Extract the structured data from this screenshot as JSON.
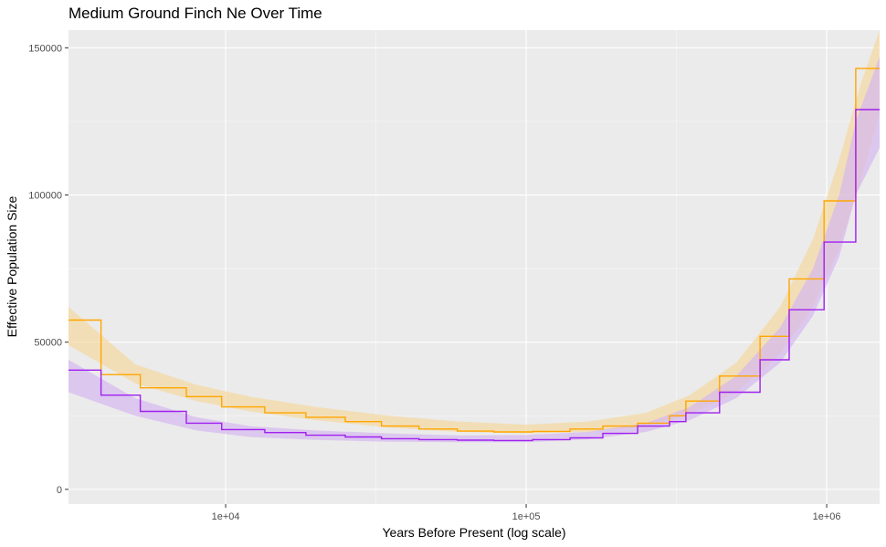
{
  "chart_data": {
    "type": "line",
    "title": "Medium Ground Finch Ne Over Time",
    "xlabel": "Years Before Present (log scale)",
    "ylabel": "Effective Population Size",
    "x_scale": "log10",
    "xlim": [
      3000,
      1500000
    ],
    "ylim": [
      -5000,
      156000
    ],
    "x_ticks": [
      {
        "value": 10000,
        "label": "1e+04"
      },
      {
        "value": 100000,
        "label": "1e+05"
      },
      {
        "value": 1000000,
        "label": "1e+06"
      }
    ],
    "y_ticks": [
      {
        "value": 0,
        "label": "0"
      },
      {
        "value": 50000,
        "label": "50000"
      },
      {
        "value": 100000,
        "label": "100000"
      },
      {
        "value": 150000,
        "label": "150000"
      }
    ],
    "grid": true,
    "legend": "none",
    "series": [
      {
        "color": "#ffa500",
        "ribbon_color": "#f5d9a0",
        "render": "step",
        "time": [
          3000,
          3850,
          5200,
          7400,
          9700,
          13500,
          18500,
          25000,
          33000,
          44000,
          59000,
          78000,
          105000,
          140000,
          180000,
          235000,
          300000,
          340000,
          440000,
          600000,
          750000,
          980000,
          1250000,
          1500000
        ],
        "ne": [
          57500,
          39000,
          34500,
          31500,
          28000,
          26000,
          24500,
          23000,
          21500,
          20500,
          19800,
          19500,
          19700,
          20500,
          21500,
          22500,
          25000,
          30000,
          38500,
          52000,
          71500,
          98000,
          143000,
          143000
        ],
        "ribbon_time": [
          3000,
          5000,
          8000,
          12000,
          20000,
          35000,
          60000,
          100000,
          160000,
          250000,
          350000,
          500000,
          700000,
          900000,
          1100000,
          1300000,
          1500000
        ],
        "ribbon_lower": [
          49000,
          36000,
          30000,
          26500,
          23500,
          21000,
          19500,
          19000,
          19500,
          21500,
          25500,
          33000,
          46000,
          62000,
          82000,
          105000,
          128000
        ],
        "ribbon_upper": [
          62000,
          42500,
          35500,
          31500,
          28000,
          25000,
          23000,
          22000,
          23000,
          26000,
          32000,
          43000,
          62000,
          85000,
          112000,
          138000,
          160000
        ]
      },
      {
        "color": "#a020f0",
        "ribbon_color": "#d6b8f0",
        "render": "step",
        "time": [
          3000,
          3850,
          5200,
          7400,
          9700,
          13500,
          18500,
          25000,
          33000,
          44000,
          59000,
          78000,
          105000,
          140000,
          180000,
          235000,
          300000,
          340000,
          440000,
          600000,
          750000,
          980000,
          1250000,
          1500000
        ],
        "ne": [
          40500,
          32000,
          26500,
          22500,
          20300,
          19300,
          18400,
          17800,
          17200,
          16900,
          16700,
          16600,
          16900,
          17500,
          19000,
          21500,
          23000,
          26000,
          33000,
          44000,
          61000,
          84000,
          129000,
          129000
        ],
        "ribbon_time": [
          3000,
          5000,
          8000,
          12000,
          20000,
          35000,
          60000,
          100000,
          160000,
          250000,
          350000,
          500000,
          700000,
          900000,
          1100000,
          1250000,
          1500000
        ],
        "ribbon_lower": [
          33000,
          25000,
          20000,
          17800,
          16800,
          16200,
          16000,
          16000,
          17000,
          19500,
          23500,
          31000,
          43000,
          59000,
          79000,
          100000,
          116000
        ],
        "ribbon_upper": [
          44000,
          31000,
          24500,
          21500,
          20000,
          19000,
          18300,
          18500,
          19500,
          22500,
          28000,
          38500,
          55000,
          75000,
          100000,
          125000,
          147000
        ]
      }
    ]
  }
}
